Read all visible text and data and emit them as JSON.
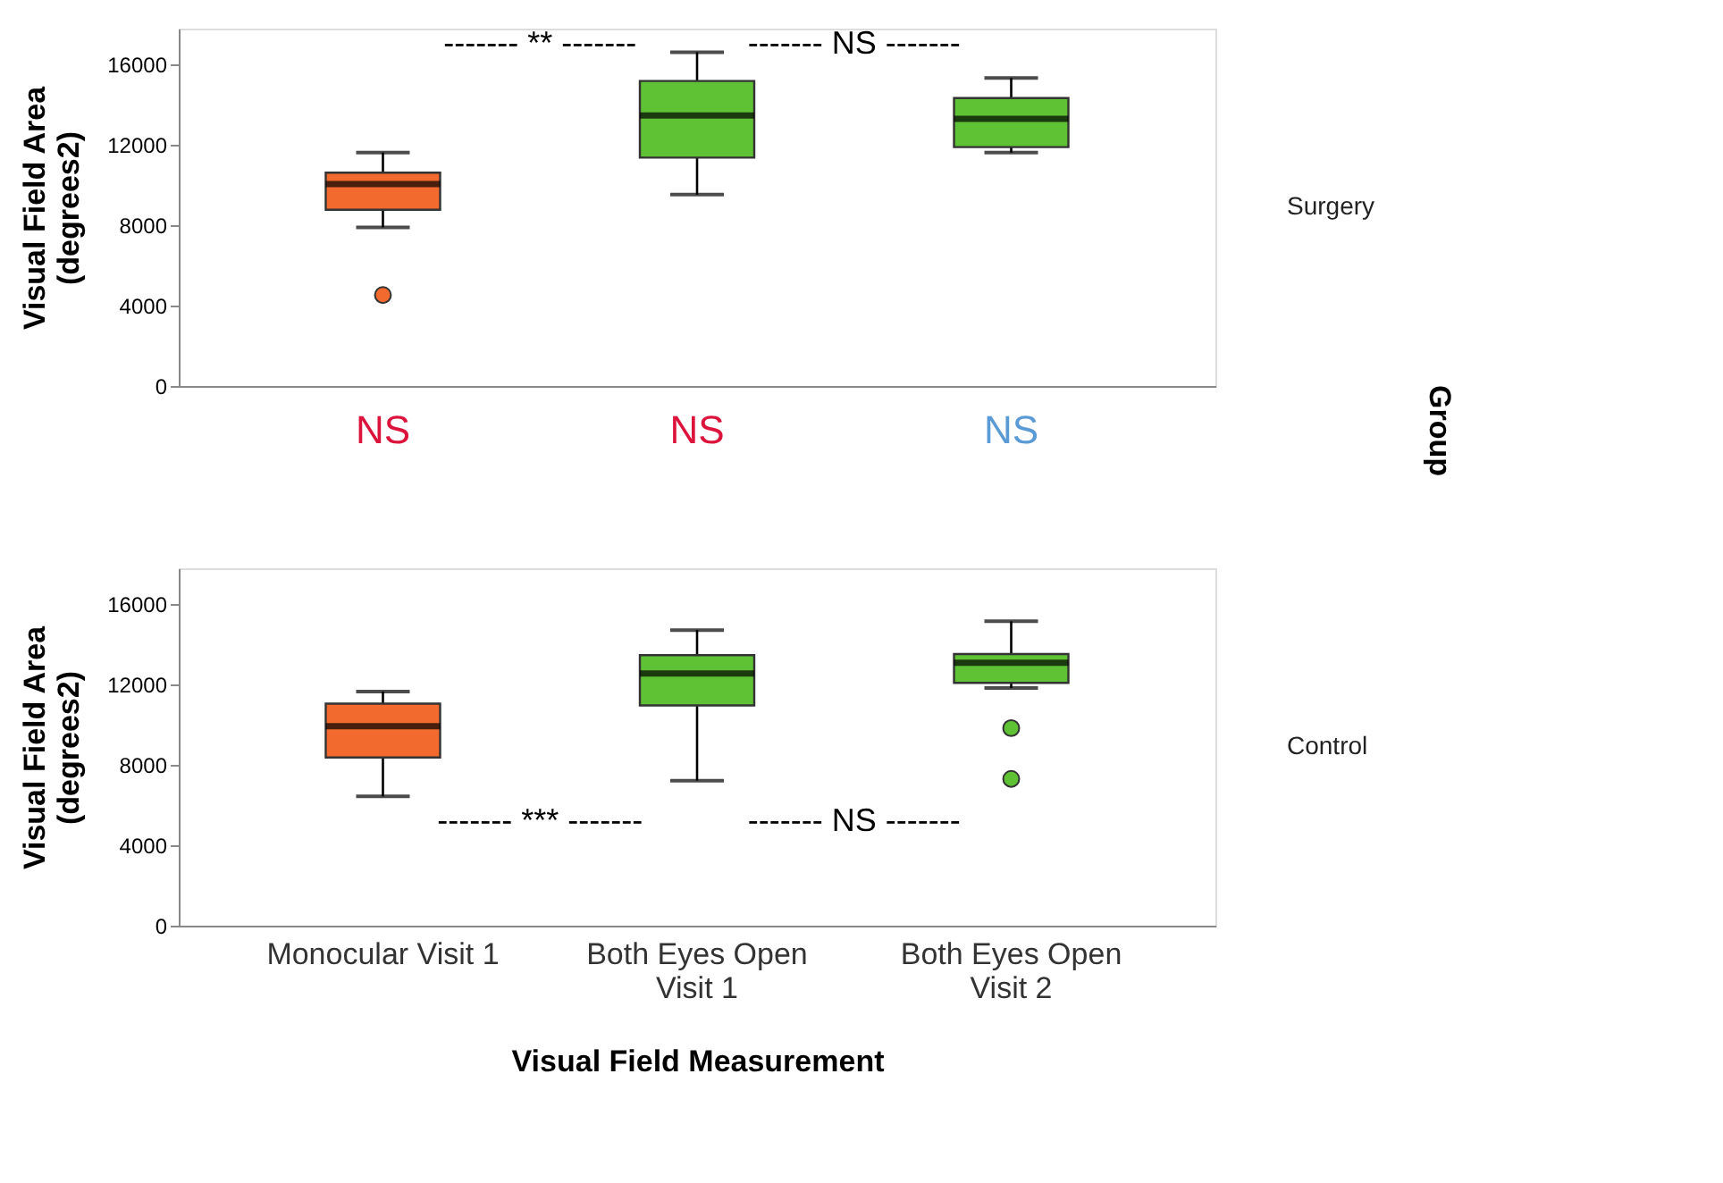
{
  "chart_data": [
    {
      "type": "box",
      "categories": [
        null,
        null,
        null
      ],
      "ylabel": "Visual Field Area (degrees2)",
      "colors": [
        "#f26a2e",
        "#5fc234",
        "#5fc234"
      ],
      "boxes": [
        {
          "low": 7900,
          "q1": 8780,
          "median": 10060,
          "q3": 10625,
          "high": 11625,
          "outliers": [
            4530
          ]
        },
        {
          "low": 9530,
          "q1": 11375,
          "median": 13470,
          "q3": 15190,
          "high": 16625
        },
        {
          "low": 11625,
          "q1": 11900,
          "median": 13310,
          "q3": 14340,
          "high": 15340
        }
      ],
      "ylim": [
        0,
        17800
      ],
      "yticks": [
        0,
        4000,
        8000,
        12000,
        16000
      ],
      "tick_labels": "y",
      "grid": false,
      "annotations": [
        "------- ** -------",
        "------- NS -------",
        "Surgery",
        "Group",
        "NS",
        "NS",
        "NS"
      ]
    },
    {
      "type": "box",
      "categories": [
        "Monocular Visit 1",
        "Both Eyes Open Visit 1",
        "Both Eyes Open Visit 2"
      ],
      "ylabel": "Visual Field Area (degrees2)",
      "xlabel": "Visual Field Measurement",
      "colors": [
        "#f26a2e",
        "#5fc234",
        "#5fc234"
      ],
      "boxes": [
        {
          "low": 6440,
          "q1": 8375,
          "median": 9940,
          "q3": 11060,
          "high": 11656
        },
        {
          "low": 7220,
          "q1": 10970,
          "median": 12560,
          "q3": 13470,
          "high": 14720
        },
        {
          "low": 11840,
          "q1": 12090,
          "median": 13090,
          "q3": 13530,
          "high": 15160,
          "outliers": [
            9840,
            7310
          ]
        }
      ],
      "ylim": [
        0,
        17800
      ],
      "yticks": [
        0,
        4000,
        8000,
        12000,
        16000
      ],
      "grid": false,
      "annotations": [
        "------- *** -------",
        "------- NS -------",
        "Control"
      ]
    }
  ]
}
